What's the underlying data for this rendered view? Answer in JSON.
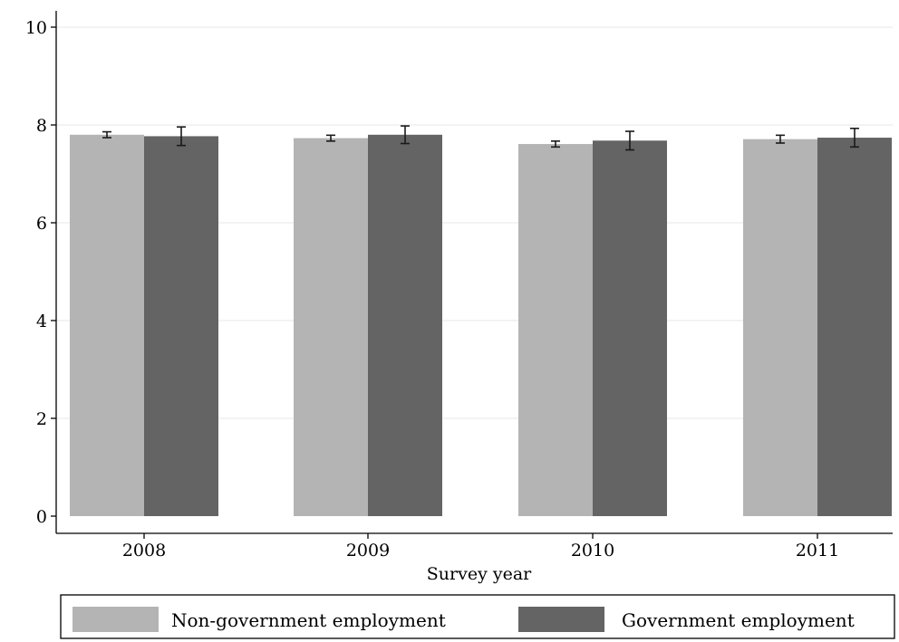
{
  "chart_data": {
    "type": "bar",
    "title": "",
    "xlabel": "Survey year",
    "ylabel": "",
    "categories": [
      "2008",
      "2009",
      "2010",
      "2011"
    ],
    "series": [
      {
        "name": "Non-government employment",
        "values": [
          7.8,
          7.73,
          7.61,
          7.71
        ],
        "ci_low": [
          7.74,
          7.67,
          7.55,
          7.63
        ],
        "ci_high": [
          7.86,
          7.79,
          7.67,
          7.79
        ],
        "color": "#b4b4b4"
      },
      {
        "name": "Government employment",
        "values": [
          7.77,
          7.8,
          7.68,
          7.74
        ],
        "ci_low": [
          7.58,
          7.62,
          7.49,
          7.55
        ],
        "ci_high": [
          7.96,
          7.98,
          7.87,
          7.93
        ],
        "color": "#646464"
      }
    ],
    "ylim": [
      0,
      10
    ],
    "yticks": [
      "0",
      "2",
      "4",
      "6",
      "8",
      "10"
    ],
    "grid": "horizontal",
    "legend_position": "bottom"
  }
}
